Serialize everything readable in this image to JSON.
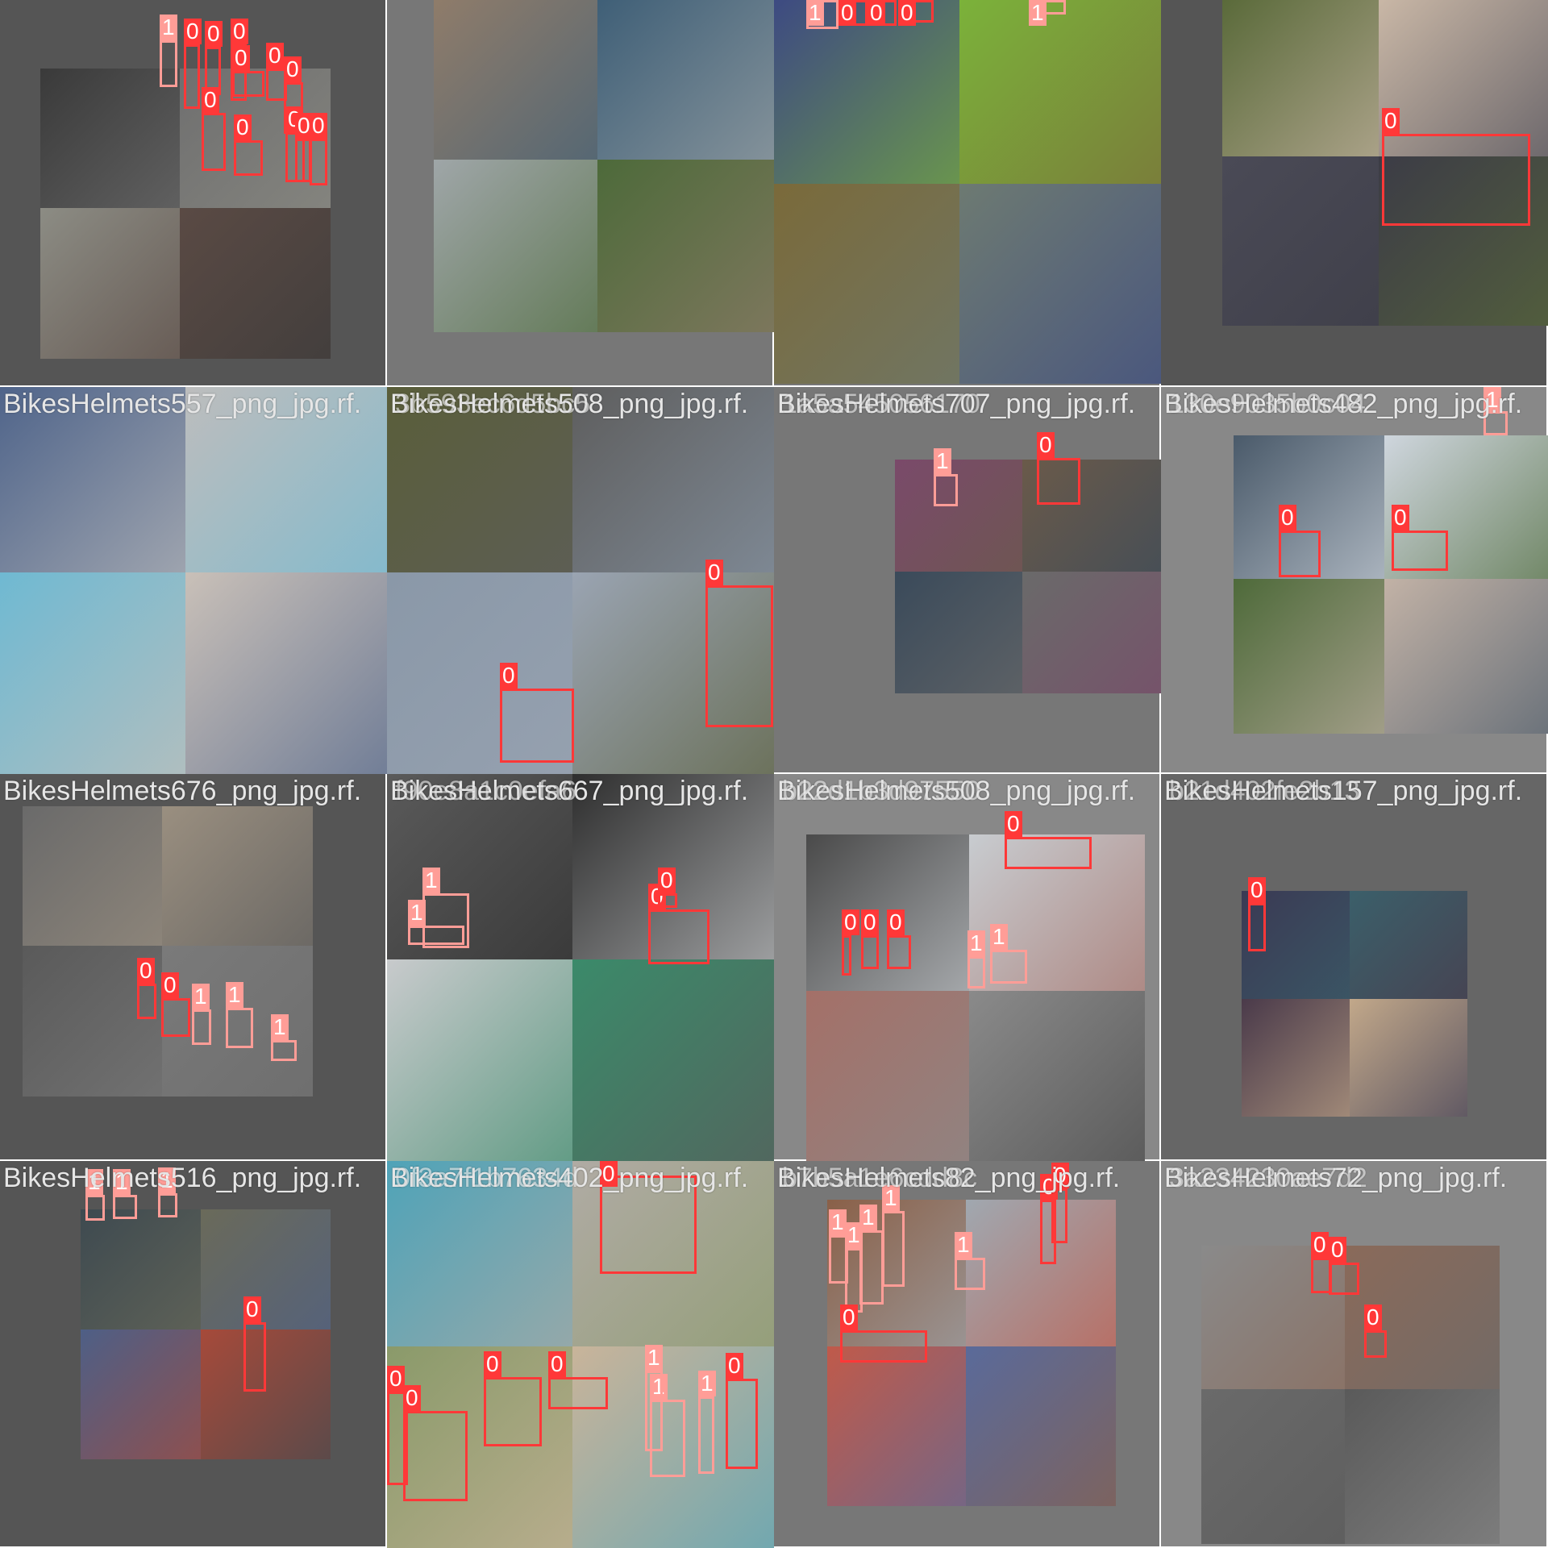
{
  "colors": {
    "class_0": "#ff3838",
    "class_1": "#ff9d97"
  },
  "tiles": [
    {
      "bg": "#555555",
      "labels": []
    },
    {
      "bg": "#777777",
      "labels": []
    },
    {
      "bg": "#777777",
      "labels": []
    },
    {
      "bg": "#555555",
      "labels": []
    },
    {
      "bg": "#666666",
      "labels": [
        "BikesHelmets557_png_jpg.rf."
      ]
    },
    {
      "bg": "#777777",
      "labels": [
        "BikesHelmets508_png_jpg.rf.",
        "3b593ec6d5bc5"
      ]
    },
    {
      "bg": "#777777",
      "labels": [
        "BikesHelmets707_png_jpg.rf.",
        "1a5a545056170"
      ]
    },
    {
      "bg": "#888888",
      "labels": [
        "BikesHelmets482_png_jpg.rf.",
        "130e9035b0c04"
      ]
    },
    {
      "bg": "#555555",
      "labels": [
        "BikesHelmets676_png_jpg.rf."
      ]
    },
    {
      "bg": "#777777",
      "labels": [
        "BikesHelmets667_png_jpg.rf.",
        "f90e8a1c0efa6"
      ]
    },
    {
      "bg": "#888888",
      "labels": [
        "BikesHelmets508_png_jpg.rf.",
        "b22d1b3d97550"
      ]
    },
    {
      "bg": "#666666",
      "labels": [
        "BikesHelmets157_png_jpg.rf.",
        "b21d402fe2b13"
      ]
    },
    {
      "bg": "#555555",
      "labels": [
        "BikesHelmets516_png_jpg.rf."
      ]
    },
    {
      "bg": "#777777",
      "labels": [
        "BikesHelmets402_png_jpg.rf.",
        "0f3a7f1b7634d"
      ]
    },
    {
      "bg": "#777777",
      "labels": [
        "BikesHelmets82_png_jpg.rf.",
        "b7b5a1e6cdd8c"
      ]
    },
    {
      "bg": "#888888",
      "labels": [
        "BikesHelmets72_png_jpg.rf.",
        "3a234230ae7d2"
      ]
    }
  ],
  "detections": [
    [
      {
        "c": "1"
      },
      {
        "c": "0"
      },
      {
        "c": "0"
      },
      {
        "c": "0"
      },
      {
        "c": "0"
      },
      {
        "c": "0"
      },
      {
        "c": "0"
      },
      {
        "c": "0"
      },
      {
        "c": "0"
      },
      {
        "c": "0"
      },
      {
        "c": "0"
      },
      {
        "c": "0"
      }
    ],
    [],
    [
      {
        "c": "1"
      },
      {
        "c": "0"
      },
      {
        "c": "0"
      },
      {
        "c": "1"
      },
      {
        "c": "0"
      }
    ],
    [
      {
        "c": "0"
      }
    ],
    [],
    [
      {
        "c": "0"
      },
      {
        "c": "0"
      }
    ],
    [
      {
        "c": "1"
      },
      {
        "c": "0"
      }
    ],
    [
      {
        "c": "0"
      },
      {
        "c": "0"
      },
      {
        "c": "1"
      }
    ],
    [
      {
        "c": "0"
      },
      {
        "c": "0"
      },
      {
        "c": "1"
      },
      {
        "c": "1"
      },
      {
        "c": "1"
      }
    ],
    [
      {
        "c": "1"
      },
      {
        "c": "1"
      },
      {
        "c": "0"
      },
      {
        "c": "0"
      }
    ],
    [
      {
        "c": "0"
      },
      {
        "c": "0"
      },
      {
        "c": "0"
      },
      {
        "c": "0"
      },
      {
        "c": "1"
      },
      {
        "c": "1"
      }
    ],
    [
      {
        "c": "0"
      }
    ],
    [
      {
        "c": "1"
      },
      {
        "c": "1"
      },
      {
        "c": "1"
      },
      {
        "c": "0"
      }
    ],
    [
      {
        "c": "0"
      },
      {
        "c": "0"
      },
      {
        "c": "0"
      },
      {
        "c": "0"
      },
      {
        "c": "0"
      },
      {
        "c": "1"
      },
      {
        "c": "1"
      },
      {
        "c": "0"
      },
      {
        "c": "1"
      }
    ],
    [
      {
        "c": "1"
      },
      {
        "c": "1"
      },
      {
        "c": "1"
      },
      {
        "c": "1"
      },
      {
        "c": "1"
      },
      {
        "c": "0"
      },
      {
        "c": "0"
      },
      {
        "c": "0"
      }
    ],
    [
      {
        "c": "0"
      },
      {
        "c": "0"
      },
      {
        "c": "0"
      }
    ]
  ]
}
